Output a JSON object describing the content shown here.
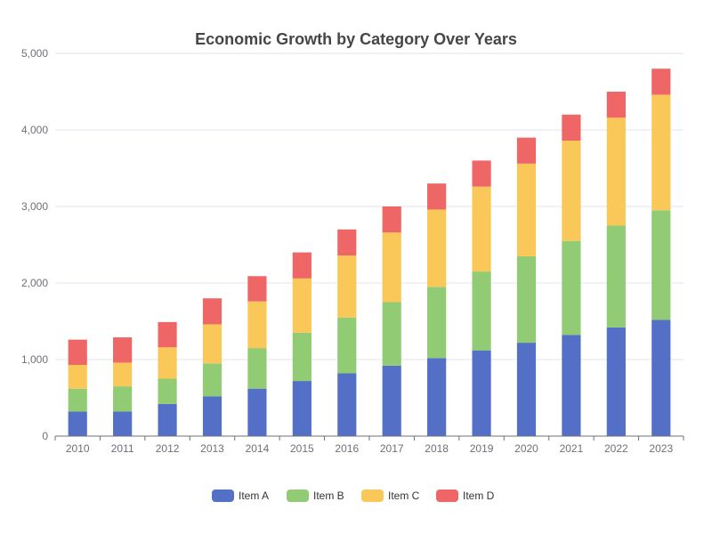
{
  "chart_data": {
    "type": "bar",
    "stacked": true,
    "title": "Economic Growth by Category Over Years",
    "xlabel": "",
    "ylabel": "",
    "ylim": [
      0,
      5000
    ],
    "yticks": [
      "0",
      "1,000",
      "2,000",
      "3,000",
      "4,000",
      "5,000"
    ],
    "categories": [
      "2010",
      "2011",
      "2012",
      "2013",
      "2014",
      "2015",
      "2016",
      "2017",
      "2018",
      "2019",
      "2020",
      "2021",
      "2022",
      "2023"
    ],
    "series": [
      {
        "name": "Item A",
        "color": "#5470c6",
        "values": [
          320,
          320,
          420,
          520,
          620,
          720,
          820,
          920,
          1020,
          1120,
          1220,
          1320,
          1420,
          1520
        ]
      },
      {
        "name": "Item B",
        "color": "#91cc75",
        "values": [
          300,
          330,
          330,
          430,
          530,
          630,
          730,
          830,
          930,
          1030,
          1130,
          1230,
          1330,
          1430
        ]
      },
      {
        "name": "Item C",
        "color": "#fac858",
        "values": [
          310,
          310,
          410,
          510,
          610,
          710,
          810,
          910,
          1010,
          1110,
          1210,
          1310,
          1410,
          1510
        ]
      },
      {
        "name": "Item D",
        "color": "#ee6666",
        "values": [
          330,
          330,
          330,
          340,
          330,
          340,
          340,
          340,
          340,
          340,
          340,
          340,
          340,
          340
        ]
      }
    ],
    "legend_position": "bottom-center",
    "grid": true
  }
}
